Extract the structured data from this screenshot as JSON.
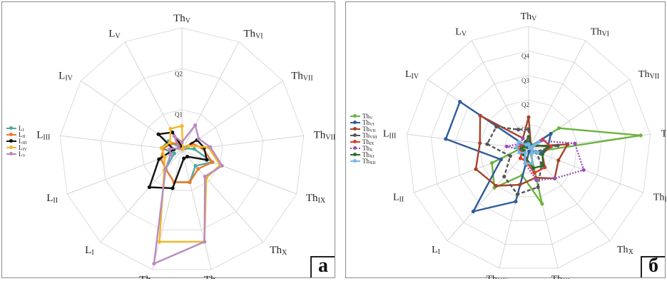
{
  "chart_data": [
    {
      "panel": "а",
      "type": "radar",
      "categories": [
        {
          "base": "Th",
          "sub": "V"
        },
        {
          "base": "Th",
          "sub": "VI"
        },
        {
          "base": "Th",
          "sub": "VII"
        },
        {
          "base": "Th",
          "sub": "VIII"
        },
        {
          "base": "Th",
          "sub": "IX"
        },
        {
          "base": "Th",
          "sub": "X"
        },
        {
          "base": "Th",
          "sub": "XI"
        },
        {
          "base": "Th",
          "sub": "XII"
        },
        {
          "base": "L",
          "sub": "I"
        },
        {
          "base": "L",
          "sub": "II"
        },
        {
          "base": "L",
          "sub": "III"
        },
        {
          "base": "L",
          "sub": "IV"
        },
        {
          "base": "L",
          "sub": "V"
        }
      ],
      "rings": 3,
      "ring_labels": [
        {
          "ring": 1,
          "text": "Q1"
        },
        {
          "ring": 2,
          "text": "Q2"
        }
      ],
      "legend_position": "left",
      "series": [
        {
          "name": {
            "base": "L",
            "sub": "I"
          },
          "color": "#4fa8a0",
          "style": "solid",
          "values": [
            0.05,
            0.05,
            0.1,
            0.3,
            0.8,
            0.5,
            0.8,
            0.8,
            0.6,
            0.2,
            0.5,
            0.4,
            0.1
          ]
        },
        {
          "name": {
            "base": "L",
            "sub": "II"
          },
          "color": "#ea7a2c",
          "style": "solid",
          "values": [
            0.05,
            0.05,
            0.3,
            0.5,
            0.8,
            0.6,
            0.8,
            0.8,
            0.6,
            0.55,
            0.45,
            0.3,
            0.2
          ]
        },
        {
          "name": {
            "base": "L",
            "sub": "III"
          },
          "color": "#111111",
          "style": "solid",
          "values": [
            0.1,
            0.05,
            0.45,
            0.55,
            0.65,
            0.2,
            0.2,
            0.95,
            1.2,
            0.6,
            0.2,
            0.7,
            0.5
          ]
        },
        {
          "name": {
            "base": "L",
            "sub": "IV"
          },
          "color": "#f1b82a",
          "style": "solid",
          "values": [
            0.6,
            0.05,
            0.2,
            0.65,
            1.0,
            0.9,
            2.3,
            2.3,
            0.65,
            0.45,
            0.5,
            0.35,
            0.6
          ]
        },
        {
          "name": {
            "base": "L",
            "sub": "V"
          },
          "color": "#b98ac0",
          "style": "solid",
          "values": [
            0.2,
            0.7,
            0.5,
            0.7,
            1.05,
            0.85,
            2.3,
            2.85,
            0.6,
            0.3,
            0.3,
            0.1,
            0.4
          ]
        }
      ]
    },
    {
      "panel": "б",
      "type": "radar",
      "categories": [
        {
          "base": "Th",
          "sub": "V"
        },
        {
          "base": "Th",
          "sub": "VI"
        },
        {
          "base": "Th",
          "sub": "VII"
        },
        {
          "base": "Th",
          "sub": "VII"
        },
        {
          "base": "Th",
          "sub": "IX"
        },
        {
          "base": "Th",
          "sub": "X"
        },
        {
          "base": "Th",
          "sub": "XI"
        },
        {
          "base": "Th",
          "sub": "XII"
        },
        {
          "base": "L",
          "sub": "I"
        },
        {
          "base": "L",
          "sub": "II"
        },
        {
          "base": "L",
          "sub": "III"
        },
        {
          "base": "L",
          "sub": "IV"
        },
        {
          "base": "L",
          "sub": "V"
        }
      ],
      "rings": 5,
      "ring_labels": [
        {
          "ring": 1,
          "text": "Q1"
        },
        {
          "ring": 2,
          "text": "Q2"
        },
        {
          "ring": 3,
          "text": "Q3"
        },
        {
          "ring": 4,
          "text": "Q4"
        }
      ],
      "legend_position": "left",
      "series": [
        {
          "name": {
            "base": "Th",
            "sub": "V"
          },
          "color": "#6cb33e",
          "style": "solid",
          "values": [
            0.1,
            0.1,
            1.5,
            4.6,
            0.3,
            0.1,
            2.3,
            1.1,
            2.1,
            1.6,
            0.3,
            0.1,
            0.1
          ]
        },
        {
          "name": {
            "base": "Th",
            "sub": "VI"
          },
          "color": "#2e5c9a",
          "style": "solid",
          "values": [
            0.3,
            0.1,
            1.1,
            0.8,
            0.5,
            0.2,
            0.1,
            2.2,
            3.4,
            1.2,
            3.4,
            3.4,
            0.1
          ]
        },
        {
          "name": {
            "base": "Th",
            "sub": "VII"
          },
          "color": "#a5432a",
          "style": "solid",
          "values": [
            1.3,
            0.2,
            0.2,
            1.6,
            1.3,
            1.6,
            1.2,
            1.5,
            2.0,
            2.3,
            2.0,
            2.4,
            0.5
          ]
        },
        {
          "name": {
            "base": "Th",
            "sub": "VIII"
          },
          "color": "#555555",
          "style": "dash",
          "values": [
            0.8,
            0.1,
            0.2,
            1.2,
            0.3,
            0.8,
            1.6,
            1.9,
            1.5,
            0.8,
            1.7,
            1.6,
            0.9
          ]
        },
        {
          "name": {
            "base": "Th",
            "sub": "IX"
          },
          "color": "#dd3b2a",
          "style": "solid",
          "values": [
            0.2,
            0.1,
            0.7,
            0.9,
            0.6,
            1.0,
            1.0,
            0.5,
            0.5,
            0.3,
            0.5,
            0.3,
            0.2
          ]
        },
        {
          "name": {
            "base": "Th",
            "sub": "X"
          },
          "color": "#9b4fb5",
          "style": "dot",
          "values": [
            0.2,
            0.1,
            0.6,
            1.9,
            2.4,
            1.6,
            1.3,
            0.6,
            0.3,
            0.2,
            0.9,
            0.4,
            0.5
          ]
        },
        {
          "name": {
            "base": "Th",
            "sub": "XI"
          },
          "color": "#2e6b2e",
          "style": "solid",
          "values": [
            0.5,
            0.2,
            0.3,
            0.8,
            0.6,
            0.9,
            0.8,
            0.4,
            0.3,
            0.2,
            0.3,
            0.2,
            0.3
          ]
        },
        {
          "name": {
            "base": "Th",
            "sub": "XII"
          },
          "color": "#75b7e6",
          "style": "solid",
          "values": [
            0.2,
            0.1,
            0.5,
            0.1,
            0.4,
            0.2,
            0.6,
            0.6,
            0.2,
            0.4,
            0.5,
            0.5,
            0.2
          ]
        }
      ]
    }
  ]
}
